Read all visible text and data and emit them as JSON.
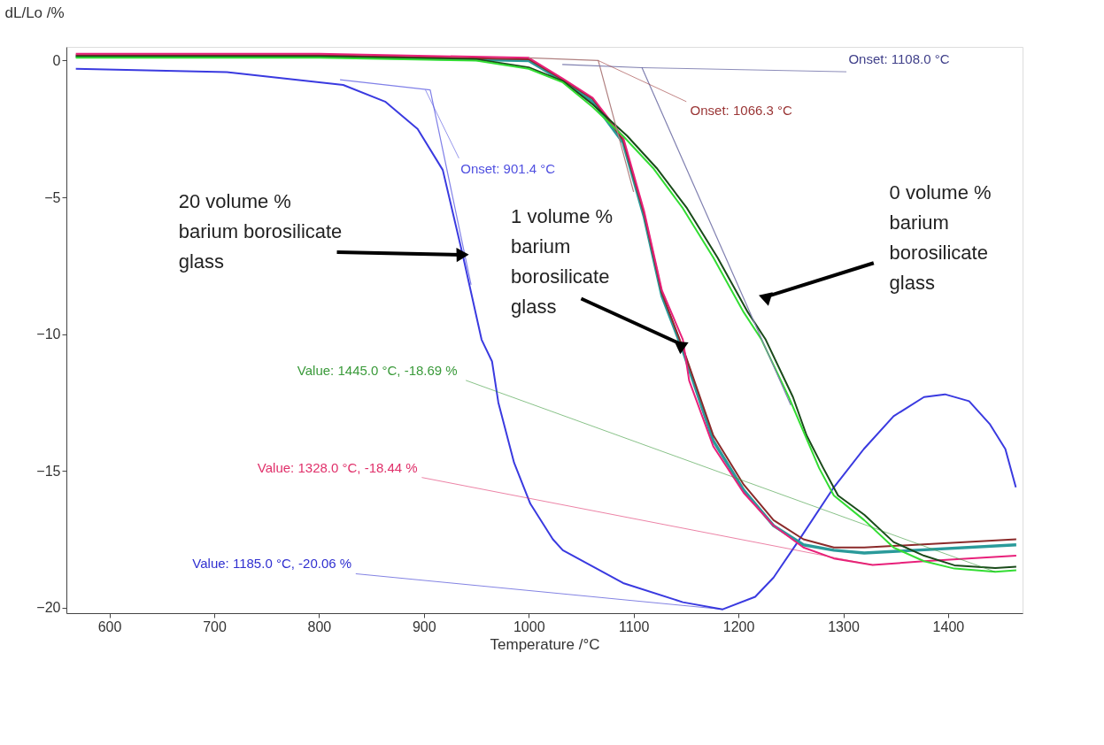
{
  "chart_data": {
    "type": "line",
    "xlabel": "Temperature /°C",
    "ylabel": "dL/Lo /%",
    "xlim": [
      559,
      1471
    ],
    "ylim": [
      -20.2,
      0.5
    ],
    "xticks": [
      600,
      700,
      800,
      900,
      1000,
      1100,
      1200,
      1300,
      1400
    ],
    "yticks": [
      0,
      -5,
      -10,
      -15,
      -20
    ],
    "grid": false,
    "marker": "none",
    "line_style": "solid",
    "series": [
      {
        "color": "#3a3ae0",
        "x": [
          568,
          712,
          823,
          863,
          894,
          918,
          937,
          955,
          965,
          971,
          986,
          1001.5,
          1023,
          1032.5,
          1090,
          1147,
          1185,
          1216,
          1233.5,
          1256.5,
          1291,
          1319.6,
          1348,
          1377,
          1397,
          1420,
          1440,
          1454.6,
          1464.6
        ],
        "values": [
          -0.3,
          -0.42,
          -0.89,
          -1.5,
          -2.5,
          -4.0,
          -7.1,
          -10.2,
          -11.0,
          -12.5,
          -14.7,
          -16.2,
          -17.5,
          -17.9,
          -19.1,
          -19.8,
          -20.06,
          -19.6,
          -18.9,
          -17.6,
          -15.6,
          -14.2,
          -13.0,
          -12.3,
          -12.2,
          -12.45,
          -13.3,
          -14.2,
          -15.6
        ]
      },
      {
        "color": "#2a9a9a",
        "x": [
          568,
          800,
          1000,
          1032.5,
          1061,
          1090,
          1110,
          1127,
          1147,
          1176,
          1205,
          1233.5,
          1262,
          1291,
          1320,
          1465
        ],
        "values": [
          0.15,
          0.15,
          0.0,
          -0.75,
          -1.5,
          -3.0,
          -5.7,
          -8.6,
          -10.6,
          -13.9,
          -15.7,
          -17.0,
          -17.7,
          -17.9,
          -18.0,
          -17.7
        ]
      },
      {
        "color": "#8b2a2a",
        "x": [
          568,
          800,
          1000,
          1032.5,
          1061,
          1090,
          1110,
          1127,
          1147,
          1176,
          1205,
          1233.5,
          1262,
          1291,
          1320,
          1465
        ],
        "values": [
          0.2,
          0.2,
          0.05,
          -0.7,
          -1.4,
          -2.9,
          -5.6,
          -8.5,
          -10.5,
          -13.7,
          -15.5,
          -16.8,
          -17.5,
          -17.8,
          -17.8,
          -17.5
        ]
      },
      {
        "color": "#e8207a",
        "x": [
          568,
          800,
          1000,
          1032.5,
          1061,
          1090,
          1110,
          1127,
          1147,
          1153,
          1176,
          1205,
          1233.5,
          1262,
          1291,
          1328,
          1377,
          1465
        ],
        "values": [
          0.25,
          0.25,
          0.1,
          -0.66,
          -1.36,
          -2.8,
          -5.5,
          -8.4,
          -10.2,
          -11.7,
          -14.1,
          -15.8,
          -17.0,
          -17.8,
          -18.2,
          -18.44,
          -18.3,
          -18.1
        ]
      },
      {
        "color": "#1a4a1a",
        "x": [
          568,
          800,
          950,
          1000,
          1032.5,
          1061,
          1094,
          1122,
          1151,
          1180,
          1209,
          1226,
          1252,
          1265,
          1281,
          1295,
          1320,
          1348,
          1377,
          1406,
          1445,
          1465
        ],
        "values": [
          0.15,
          0.15,
          0.05,
          -0.25,
          -0.75,
          -1.6,
          -2.76,
          -3.93,
          -5.4,
          -7.2,
          -9.2,
          -10.2,
          -12.3,
          -13.7,
          -14.9,
          -15.9,
          -16.6,
          -17.6,
          -18.1,
          -18.45,
          -18.55,
          -18.5
        ]
      },
      {
        "color": "#33dd33",
        "x": [
          568,
          800,
          950,
          1000,
          1032.5,
          1061,
          1090,
          1118.6,
          1147,
          1176,
          1205,
          1222,
          1248,
          1277,
          1291,
          1320,
          1348,
          1377,
          1406,
          1445,
          1465
        ],
        "values": [
          0.1,
          0.1,
          0.0,
          -0.3,
          -0.8,
          -1.7,
          -2.76,
          -3.93,
          -5.4,
          -7.2,
          -9.2,
          -10.2,
          -12.3,
          -14.9,
          -15.9,
          -16.8,
          -17.8,
          -18.3,
          -18.57,
          -18.69,
          -18.63
        ]
      },
      {
        "color": "#8080e8",
        "x": [
          820,
          906,
          945
        ],
        "values": [
          -0.7,
          -1.07,
          -8.2
        ]
      },
      {
        "color": "#b08080",
        "x": [
          1000,
          1066.3,
          1100
        ],
        "values": [
          0.1,
          0.0,
          -4.8
        ]
      },
      {
        "color": "#8080b0",
        "x": [
          1032,
          1108,
          1250
        ],
        "values": [
          -0.14,
          -0.26,
          -12.6
        ]
      }
    ],
    "annotations": [
      {
        "text": "Onset: 901.4 °C",
        "x": 901.4,
        "y": -1.07
      },
      {
        "text": "Onset: 1108.0 °C",
        "x": 1108,
        "y": -0.26
      },
      {
        "text": "Onset: 1066.3 °C",
        "x": 1066.3,
        "y": 0.0
      },
      {
        "text": "Value: 1445.0 °C, -18.69 %",
        "x": 1445,
        "y": -18.69
      },
      {
        "text": "Value: 1328.0 °C, -18.44 %",
        "x": 1328,
        "y": -18.44
      },
      {
        "text": "Value: 1185.0 °C, -20.06 %",
        "x": 1185,
        "y": -20.06
      },
      {
        "text": "20 volume %\nbarium borosilicate\nglass",
        "x": 937,
        "y": -7.1
      },
      {
        "text": "1 volume %\nbarium\nborosilicate\nglass",
        "x": 1147,
        "y": -10.4
      },
      {
        "text": "0 volume %\nbarium\nborosilicate\nglass",
        "x": 1225,
        "y": -8.65
      }
    ]
  }
}
